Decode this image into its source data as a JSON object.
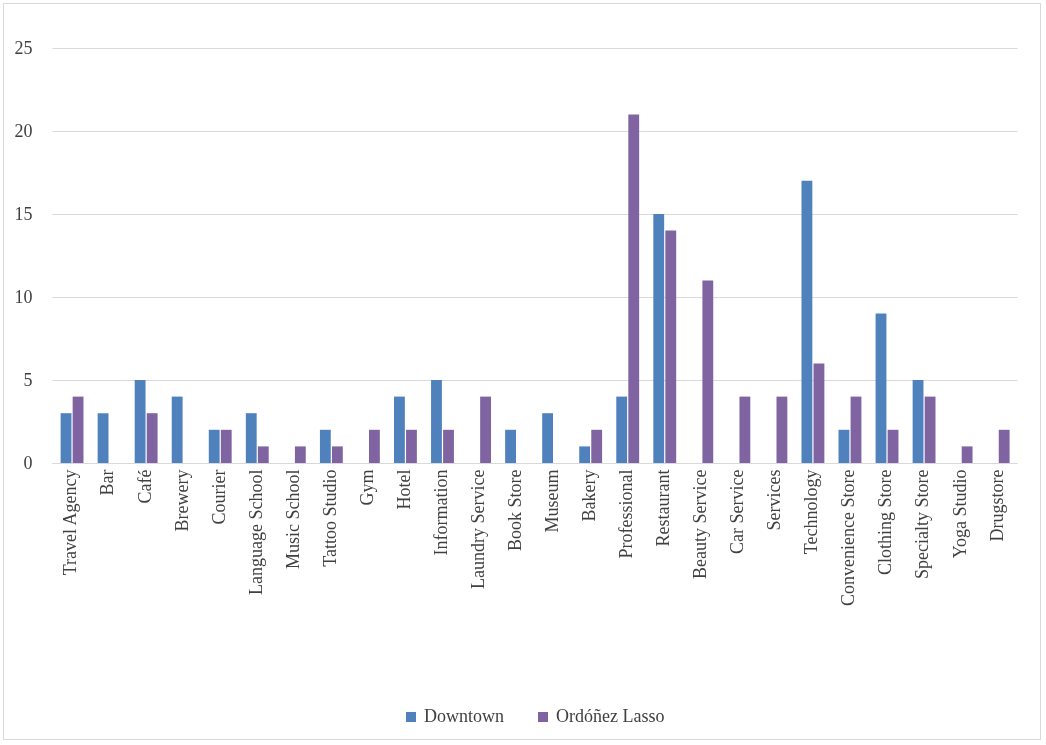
{
  "chart_data": {
    "type": "bar",
    "categories": [
      "Travel Agency",
      "Bar",
      "Café",
      "Brewery",
      "Courier",
      "Language School",
      "Music School",
      "Tattoo Studio",
      "Gym",
      "Hotel",
      "Information",
      "Laundry Service",
      "Book Store",
      "Museum",
      "Bakery",
      "Professional",
      "Restaurant",
      "Beauty Service",
      "Car Service",
      "Services",
      "Technology",
      "Convenience Store",
      "Clothing Store",
      "Specialty Store",
      "Yoga Studio",
      "Drugstore"
    ],
    "series": [
      {
        "name": "Downtown",
        "color": "#4f81bd",
        "values": [
          3,
          3,
          5,
          4,
          2,
          3,
          null,
          2,
          null,
          4,
          5,
          null,
          2,
          3,
          1,
          4,
          15,
          null,
          null,
          null,
          17,
          2,
          9,
          5,
          null,
          null
        ]
      },
      {
        "name": "Ordóñez Lasso",
        "color": "#8064a2",
        "values": [
          4,
          null,
          3,
          null,
          2,
          1,
          1,
          1,
          2,
          2,
          2,
          4,
          null,
          null,
          2,
          21,
          14,
          11,
          4,
          4,
          6,
          4,
          2,
          4,
          1,
          2
        ]
      }
    ],
    "ylim": [
      0,
      25
    ],
    "yticks": [
      0,
      5,
      10,
      15,
      20,
      25
    ],
    "grid": "y",
    "legend": "bottom"
  }
}
